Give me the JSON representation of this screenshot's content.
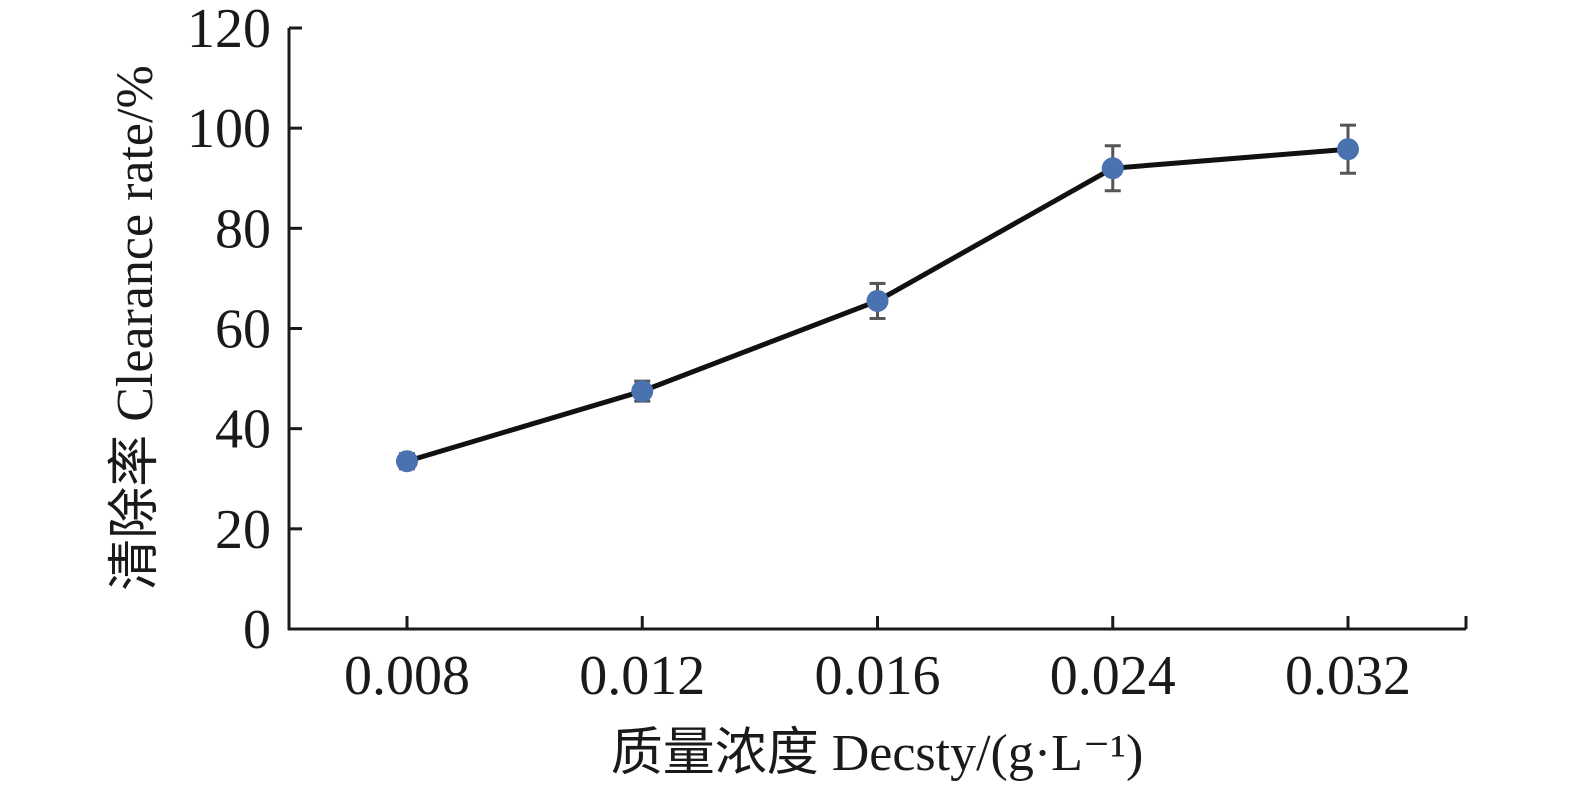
{
  "chart_data": {
    "type": "line",
    "title": "",
    "xlabel": "质量浓度 Decsty/(g·L⁻¹)",
    "ylabel": "清除率 Clearance rate/%",
    "categories": [
      "0.008",
      "0.012",
      "0.016",
      "0.024",
      "0.032"
    ],
    "y_ticks": [
      0,
      20,
      40,
      60,
      80,
      100,
      120
    ],
    "ylim": [
      0,
      120
    ],
    "grid": false,
    "legend": "none",
    "series": [
      {
        "values": [
          33.5,
          47.5,
          65.5,
          92.0,
          95.8
        ],
        "errors": [
          1.5,
          2.0,
          3.5,
          4.5,
          4.8
        ]
      }
    ],
    "colors": {
      "marker": "#4a72b0",
      "line": "#111111",
      "error_bar": "#555555",
      "axis": "#1a1a1a"
    }
  }
}
